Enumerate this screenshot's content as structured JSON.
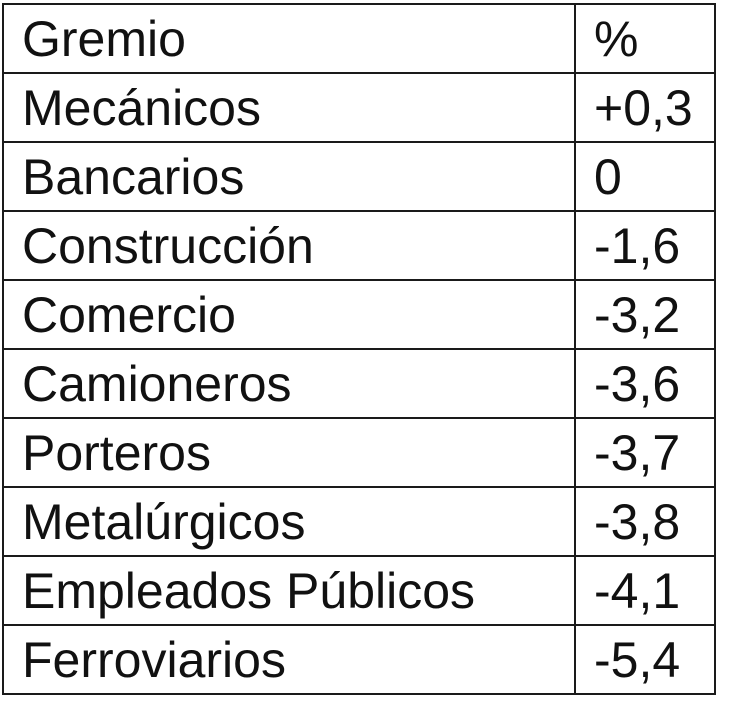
{
  "chart_data": {
    "type": "table",
    "columns": [
      "Gremio",
      "%"
    ],
    "rows": [
      {
        "gremio": "Mecánicos",
        "valor": "+0,3"
      },
      {
        "gremio": "Bancarios",
        "valor": "0"
      },
      {
        "gremio": "Construcción",
        "valor": "-1,6"
      },
      {
        "gremio": "Comercio",
        "valor": "-3,2"
      },
      {
        "gremio": "Camioneros",
        "valor": "-3,6"
      },
      {
        "gremio": "Porteros",
        "valor": "-3,7"
      },
      {
        "gremio": "Metalúrgicos",
        "valor": "-3,8"
      },
      {
        "gremio": "Empleados Públicos",
        "valor": "-4,1"
      },
      {
        "gremio": "Ferroviarios",
        "valor": "-5,4"
      }
    ]
  }
}
